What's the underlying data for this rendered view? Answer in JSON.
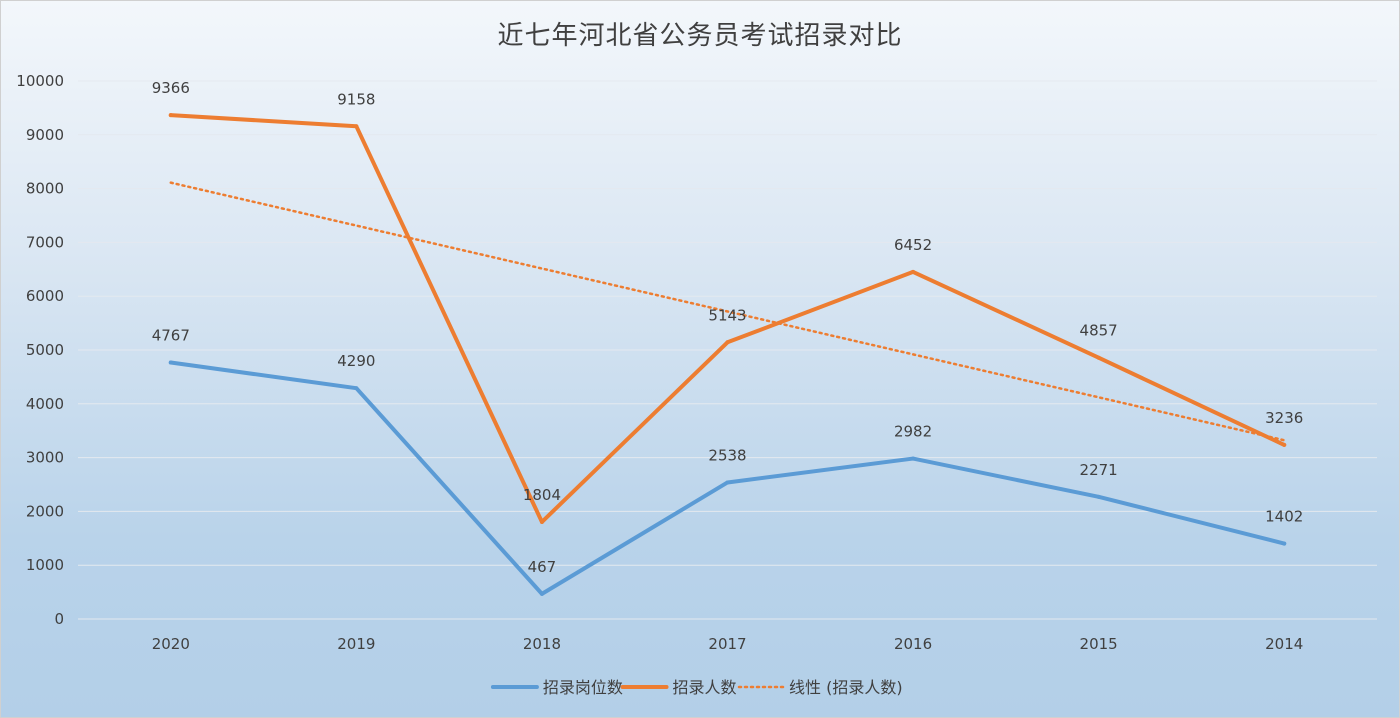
{
  "chart_data": {
    "type": "line",
    "title": "近七年河北省公务员考试招录对比",
    "categories": [
      "2020",
      "2019",
      "2018",
      "2017",
      "2016",
      "2015",
      "2014"
    ],
    "series": [
      {
        "name": "招录岗位数",
        "values": [
          4767,
          4290,
          467,
          2538,
          2982,
          2271,
          1402
        ],
        "color": "#5b9bd5",
        "style": "solid"
      },
      {
        "name": "招录人数",
        "values": [
          9366,
          9158,
          1804,
          5143,
          6452,
          4857,
          3236
        ],
        "color": "#ed7d31",
        "style": "solid"
      }
    ],
    "trendline": {
      "name": "线性 (招录人数)",
      "of_series": "招录人数",
      "type": "linear",
      "color": "#ed7d31",
      "style": "dotted"
    },
    "ylim": [
      0,
      10000
    ],
    "yticks": [
      "0",
      "1000",
      "2000",
      "3000",
      "4000",
      "5000",
      "6000",
      "7000",
      "8000",
      "9000",
      "10000"
    ],
    "xlabel": "",
    "ylabel": "",
    "grid": true,
    "legend_position": "bottom"
  }
}
